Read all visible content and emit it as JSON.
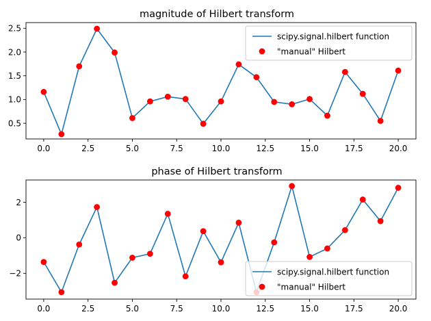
{
  "chart_data": [
    {
      "type": "line",
      "title": "magnitude of Hilbert transform",
      "xlabel": "",
      "ylabel": "",
      "xlim": [
        -1.0,
        21.0
      ],
      "ylim": [
        0.17,
        2.62
      ],
      "x_ticks": [
        0,
        2.5,
        5,
        7.5,
        10,
        12.5,
        15,
        17.5,
        20
      ],
      "x_tick_labels": [
        "0.0",
        "2.5",
        "5.0",
        "7.5",
        "10.0",
        "12.5",
        "15.0",
        "17.5",
        "20.0"
      ],
      "y_ticks": [
        0.5,
        1.0,
        1.5,
        2.0,
        2.5
      ],
      "y_tick_labels": [
        "0.5",
        "1.0",
        "1.5",
        "2.0",
        "2.5"
      ],
      "grid": false,
      "legend_position": "top-right",
      "x": [
        0,
        1,
        2,
        3,
        4,
        5,
        6,
        7,
        8,
        9,
        10,
        11,
        12,
        13,
        14,
        15,
        16,
        17,
        18,
        19,
        20
      ],
      "series": [
        {
          "name": "scipy.signal.hilbert function",
          "style": "line",
          "color": "#1f77b4",
          "values": [
            1.16,
            0.27,
            1.7,
            2.49,
            1.99,
            0.61,
            0.96,
            1.06,
            1.01,
            0.49,
            0.96,
            1.74,
            1.47,
            0.95,
            0.9,
            1.01,
            0.66,
            1.58,
            1.12,
            0.55,
            1.61
          ]
        },
        {
          "name": "\"manual\" Hilbert",
          "style": "markers",
          "color": "#ff0000",
          "values": [
            1.16,
            0.27,
            1.7,
            2.49,
            1.99,
            0.61,
            0.96,
            1.06,
            1.01,
            0.49,
            0.96,
            1.74,
            1.47,
            0.95,
            0.9,
            1.01,
            0.66,
            1.58,
            1.12,
            0.55,
            1.61
          ]
        }
      ]
    },
    {
      "type": "line",
      "title": "phase of Hilbert transform",
      "xlabel": "",
      "ylabel": "",
      "xlim": [
        -1.0,
        21.0
      ],
      "ylim": [
        -3.45,
        3.25
      ],
      "x_ticks": [
        0,
        2.5,
        5,
        7.5,
        10,
        12.5,
        15,
        17.5,
        20
      ],
      "x_tick_labels": [
        "0.0",
        "2.5",
        "5.0",
        "7.5",
        "10.0",
        "12.5",
        "15.0",
        "17.5",
        "20.0"
      ],
      "y_ticks": [
        -2,
        0,
        2
      ],
      "y_tick_labels": [
        "−2",
        "0",
        "2"
      ],
      "grid": false,
      "legend_position": "bottom-right",
      "x": [
        0,
        1,
        2,
        3,
        4,
        5,
        6,
        7,
        8,
        9,
        10,
        11,
        12,
        13,
        14,
        15,
        16,
        17,
        18,
        19,
        20
      ],
      "series": [
        {
          "name": "scipy.signal.hilbert function",
          "style": "line",
          "color": "#1f77b4",
          "values": [
            -1.36,
            -3.06,
            -0.38,
            1.73,
            -2.53,
            -1.12,
            -0.9,
            1.35,
            -2.17,
            0.37,
            -1.38,
            0.85,
            -3.06,
            -0.26,
            2.91,
            -1.08,
            -0.6,
            0.43,
            2.15,
            0.94,
            2.81
          ]
        },
        {
          "name": "\"manual\" Hilbert",
          "style": "markers",
          "color": "#ff0000",
          "values": [
            -1.36,
            -3.06,
            -0.38,
            1.73,
            -2.53,
            -1.12,
            -0.9,
            1.35,
            -2.17,
            0.37,
            -1.38,
            0.85,
            -3.06,
            -0.26,
            2.91,
            -1.08,
            -0.6,
            0.43,
            2.15,
            0.94,
            2.81
          ]
        }
      ]
    }
  ]
}
